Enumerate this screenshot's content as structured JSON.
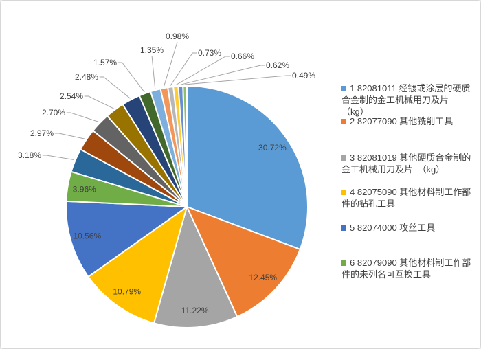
{
  "chart_data": {
    "type": "pie",
    "title": "",
    "start_angle_deg": 0,
    "direction": "clockwise",
    "values": [
      30.72,
      12.45,
      11.22,
      10.79,
      10.56,
      3.96,
      3.18,
      2.97,
      2.7,
      2.54,
      2.48,
      1.57,
      1.35,
      0.98,
      0.73,
      0.66,
      0.62,
      0.49
    ],
    "labels": [
      "30.72%",
      "12.45%",
      "11.22%",
      "10.79%",
      "10.56%",
      "3.96%",
      "3.18%",
      "2.97%",
      "2.70%",
      "2.54%",
      "2.48%",
      "1.57%",
      "1.35%",
      "0.98%",
      "0.73%",
      "0.66%",
      "0.62%",
      "0.49%"
    ],
    "colors": [
      "#5B9BD5",
      "#ED7D31",
      "#A5A5A5",
      "#FFC000",
      "#4472C4",
      "#70AD47",
      "#2A6899",
      "#9E480E",
      "#636363",
      "#997300",
      "#264478",
      "#43682B",
      "#7CAFDD",
      "#F1975A",
      "#B7B7B7",
      "#FFCD33",
      "#698ED0",
      "#8CC168"
    ],
    "label_color": "#404040",
    "leader_line_color": "#A6A6A6",
    "slice_border_color": "#FFFFFF",
    "legend_position": "right",
    "legend": {
      "items": [
        {
          "label": "1 82081011 经镀或涂层的硬质合金制的金工机械用刀及片　　　（kg）",
          "color": "#5B9BD5"
        },
        {
          "label": "2 82077090 其他铣削工具",
          "color": "#ED7D31"
        },
        {
          "label": "3 82081019 其他硬质合金制的金工机械用刀及片　（kg）",
          "color": "#A5A5A5"
        },
        {
          "label": "4 82075090 其他材料制工作部件的钻孔工具",
          "color": "#FFC000"
        },
        {
          "label": "5 82074000 攻丝工具",
          "color": "#4472C4"
        },
        {
          "label": "6 82079090 其他材料制工作部件的未列名可互换工具",
          "color": "#70AD47"
        }
      ]
    }
  },
  "frame": {
    "background": "#FFFFFF",
    "border_color": "#D7D7D7"
  }
}
